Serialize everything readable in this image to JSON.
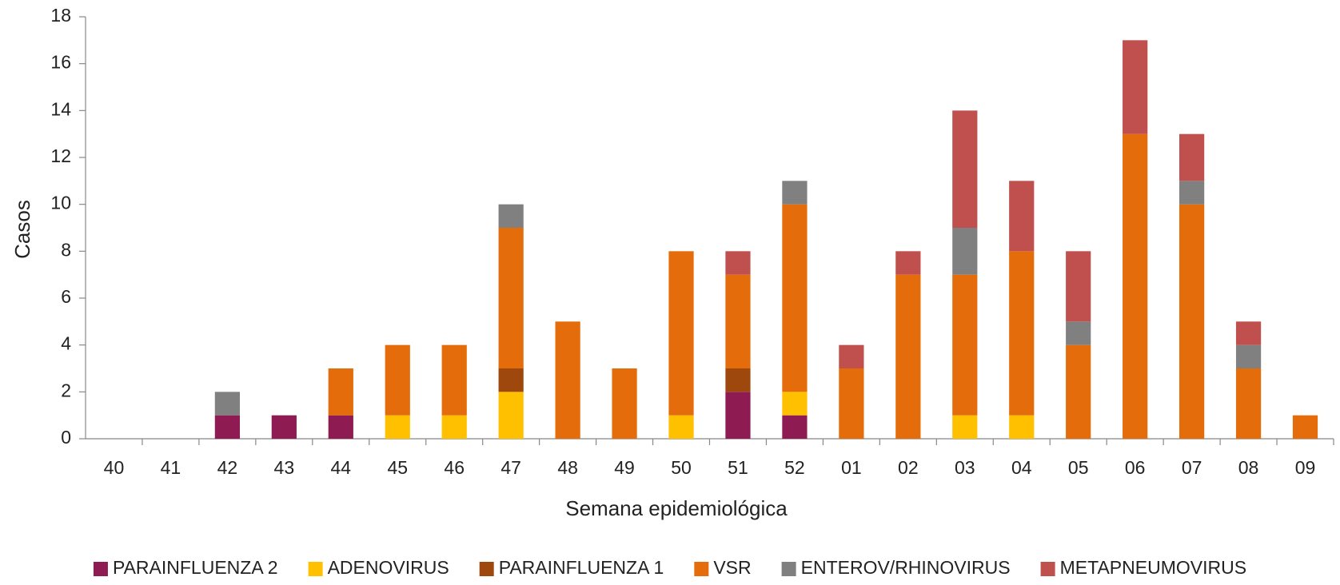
{
  "chart_data": {
    "type": "stacked_bar",
    "x_label": "Semana epidemiológica",
    "y_label": "Casos",
    "categories": [
      "40",
      "41",
      "42",
      "43",
      "44",
      "45",
      "46",
      "47",
      "48",
      "49",
      "50",
      "51",
      "52",
      "01",
      "02",
      "03",
      "04",
      "05",
      "06",
      "07",
      "08",
      "09"
    ],
    "series": [
      {
        "name": "PARAINFLUENZA 2",
        "color": "#8E1B51",
        "values": [
          0,
          0,
          1,
          1,
          1,
          0,
          0,
          0,
          0,
          0,
          0,
          2,
          1,
          0,
          0,
          0,
          0,
          0,
          0,
          0,
          0,
          0
        ]
      },
      {
        "name": "ADENOVIRUS",
        "color": "#FFC000",
        "values": [
          0,
          0,
          0,
          0,
          0,
          1,
          1,
          2,
          0,
          0,
          1,
          0,
          1,
          0,
          0,
          1,
          1,
          0,
          0,
          0,
          0,
          0
        ]
      },
      {
        "name": "PARAINFLUENZA 1",
        "color": "#9E480E",
        "values": [
          0,
          0,
          0,
          0,
          0,
          0,
          0,
          1,
          0,
          0,
          0,
          1,
          0,
          0,
          0,
          0,
          0,
          0,
          0,
          0,
          0,
          0
        ]
      },
      {
        "name": "VSR",
        "color": "#E46C0A",
        "values": [
          0,
          0,
          0,
          0,
          2,
          3,
          3,
          6,
          5,
          3,
          7,
          4,
          8,
          3,
          7,
          6,
          7,
          4,
          13,
          10,
          3,
          1
        ]
      },
      {
        "name": "ENTEROV/RHINOVIRUS",
        "color": "#808080",
        "values": [
          0,
          0,
          1,
          0,
          0,
          0,
          0,
          1,
          0,
          0,
          0,
          0,
          1,
          0,
          0,
          2,
          0,
          1,
          0,
          1,
          1,
          0
        ]
      },
      {
        "name": "METAPNEUMOVIRUS",
        "color": "#C0504D",
        "values": [
          0,
          0,
          0,
          0,
          0,
          0,
          0,
          0,
          0,
          0,
          0,
          1,
          0,
          1,
          1,
          5,
          3,
          3,
          4,
          2,
          1,
          0
        ]
      }
    ],
    "ylim": [
      0,
      18
    ],
    "yticks": [
      0,
      2,
      4,
      6,
      8,
      10,
      12,
      14,
      16,
      18
    ],
    "legend": "bottom"
  }
}
